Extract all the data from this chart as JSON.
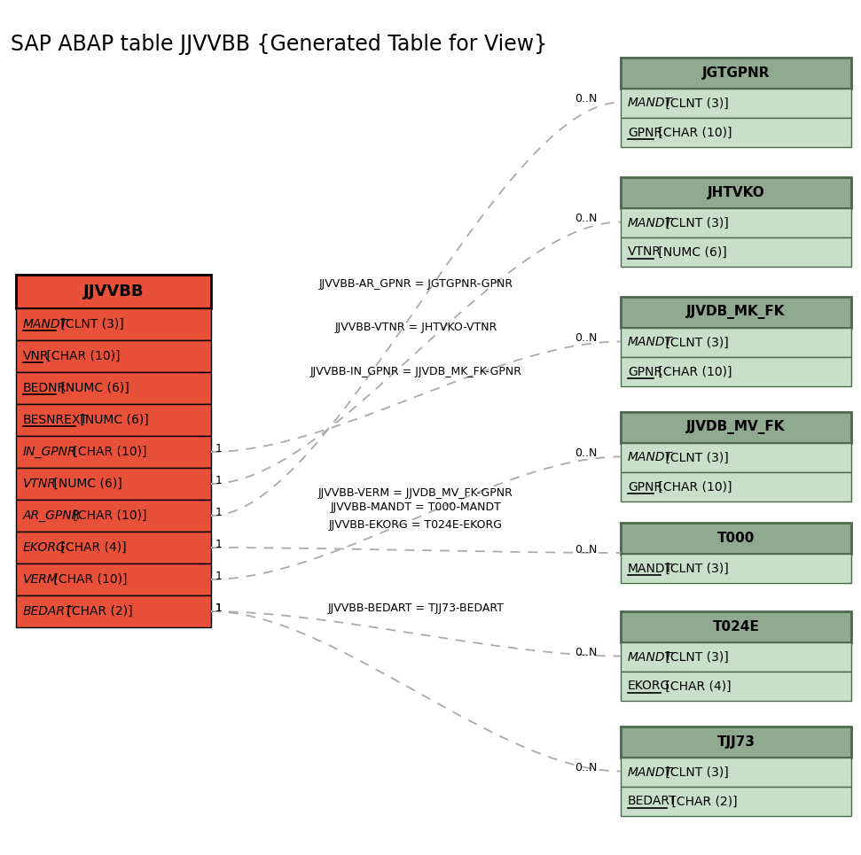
{
  "title": "SAP ABAP table JJVVBB {Generated Table for View}",
  "main_table": {
    "name": "JJVVBB",
    "fields": [
      {
        "name": "MANDT",
        "type": " [CLNT (3)]",
        "underline": true,
        "italic": true
      },
      {
        "name": "VNR",
        "type": " [CHAR (10)]",
        "underline": true,
        "italic": false
      },
      {
        "name": "BEDNR",
        "type": " [NUMC (6)]",
        "underline": true,
        "italic": false
      },
      {
        "name": "BESNREXT",
        "type": " [NUMC (6)]",
        "underline": true,
        "italic": false
      },
      {
        "name": "IN_GPNR",
        "type": " [CHAR (10)]",
        "underline": false,
        "italic": true
      },
      {
        "name": "VTNR",
        "type": " [NUMC (6)]",
        "underline": false,
        "italic": true
      },
      {
        "name": "AR_GPNR",
        "type": " [CHAR (10)]",
        "underline": false,
        "italic": true
      },
      {
        "name": "EKORG",
        "type": " [CHAR (4)]",
        "underline": false,
        "italic": true
      },
      {
        "name": "VERM",
        "type": " [CHAR (10)]",
        "underline": false,
        "italic": true
      },
      {
        "name": "BEDART",
        "type": " [CHAR (2)]",
        "underline": false,
        "italic": true
      }
    ],
    "header_color": "#e8503a",
    "field_color": "#e8503a",
    "border_color": "#000000"
  },
  "connections": [
    {
      "from_field": "AR_GPNR",
      "label": "JJVVBB-AR_GPNR = JGTGPNR-GPNR",
      "label2": "",
      "target_idx": 0
    },
    {
      "from_field": "VTNR",
      "label": "JJVVBB-VTNR = JHTVKO-VTNR",
      "label2": "",
      "target_idx": 1
    },
    {
      "from_field": "IN_GPNR",
      "label": "JJVVBB-IN_GPNR = JJVDB_MK_FK-GPNR",
      "label2": "",
      "target_idx": 2
    },
    {
      "from_field": "VERM",
      "label": "JJVVBB-VERM = JJVDB_MV_FK-GPNR",
      "label2": "JJVVBB-MANDT = T000-MANDT",
      "target_idx": 3
    },
    {
      "from_field": "EKORG",
      "label": "JJVVBB-EKORG = T024E-EKORG",
      "label2": "",
      "target_idx": 4
    },
    {
      "from_field": "BEDART",
      "label": "JJVVBB-BEDART = TJJ73-BEDART",
      "label2": "",
      "target_idx": 5
    },
    {
      "from_field": "BEDART",
      "label": "",
      "label2": "",
      "target_idx": 6
    }
  ],
  "related_tables": [
    {
      "name": "JGTGPNR",
      "fields": [
        {
          "name": "MANDT",
          "type": " [CLNT (3)]",
          "underline": false,
          "italic": true
        },
        {
          "name": "GPNR",
          "type": " [CHAR (10)]",
          "underline": false,
          "italic": false,
          "underline_name": true
        }
      ],
      "header_color": "#8faa8f",
      "field_color": "#c8dfc8"
    },
    {
      "name": "JHTVKO",
      "fields": [
        {
          "name": "MANDT",
          "type": " [CLNT (3)]",
          "underline": false,
          "italic": true
        },
        {
          "name": "VTNR",
          "type": " [NUMC (6)]",
          "underline": false,
          "italic": false,
          "underline_name": true
        }
      ],
      "header_color": "#8faa8f",
      "field_color": "#c8dfc8"
    },
    {
      "name": "JJVDB_MK_FK",
      "fields": [
        {
          "name": "MANDT",
          "type": " [CLNT (3)]",
          "underline": false,
          "italic": true
        },
        {
          "name": "GPNR",
          "type": " [CHAR (10)]",
          "underline": false,
          "italic": false,
          "underline_name": true
        }
      ],
      "header_color": "#8faa8f",
      "field_color": "#c8dfc8"
    },
    {
      "name": "JJVDB_MV_FK",
      "fields": [
        {
          "name": "MANDT",
          "type": " [CLNT (3)]",
          "underline": false,
          "italic": true
        },
        {
          "name": "GPNR",
          "type": " [CHAR (10)]",
          "underline": false,
          "italic": false,
          "underline_name": true
        }
      ],
      "header_color": "#8faa8f",
      "field_color": "#c8dfc8"
    },
    {
      "name": "T000",
      "fields": [
        {
          "name": "MANDT",
          "type": " [CLNT (3)]",
          "underline": false,
          "italic": false,
          "underline_name": true
        }
      ],
      "header_color": "#8faa8f",
      "field_color": "#c8dfc8"
    },
    {
      "name": "T024E",
      "fields": [
        {
          "name": "MANDT",
          "type": " [CLNT (3)]",
          "underline": false,
          "italic": true
        },
        {
          "name": "EKORG",
          "type": " [CHAR (4)]",
          "underline": false,
          "italic": false,
          "underline_name": true
        }
      ],
      "header_color": "#8faa8f",
      "field_color": "#c8dfc8"
    },
    {
      "name": "TJJ73",
      "fields": [
        {
          "name": "MANDT",
          "type": " [CLNT (3)]",
          "underline": false,
          "italic": true
        },
        {
          "name": "BEDART",
          "type": " [CHAR (2)]",
          "underline": false,
          "italic": false,
          "underline_name": true
        }
      ],
      "header_color": "#8faa8f",
      "field_color": "#c8dfc8"
    }
  ],
  "background_color": "#ffffff"
}
